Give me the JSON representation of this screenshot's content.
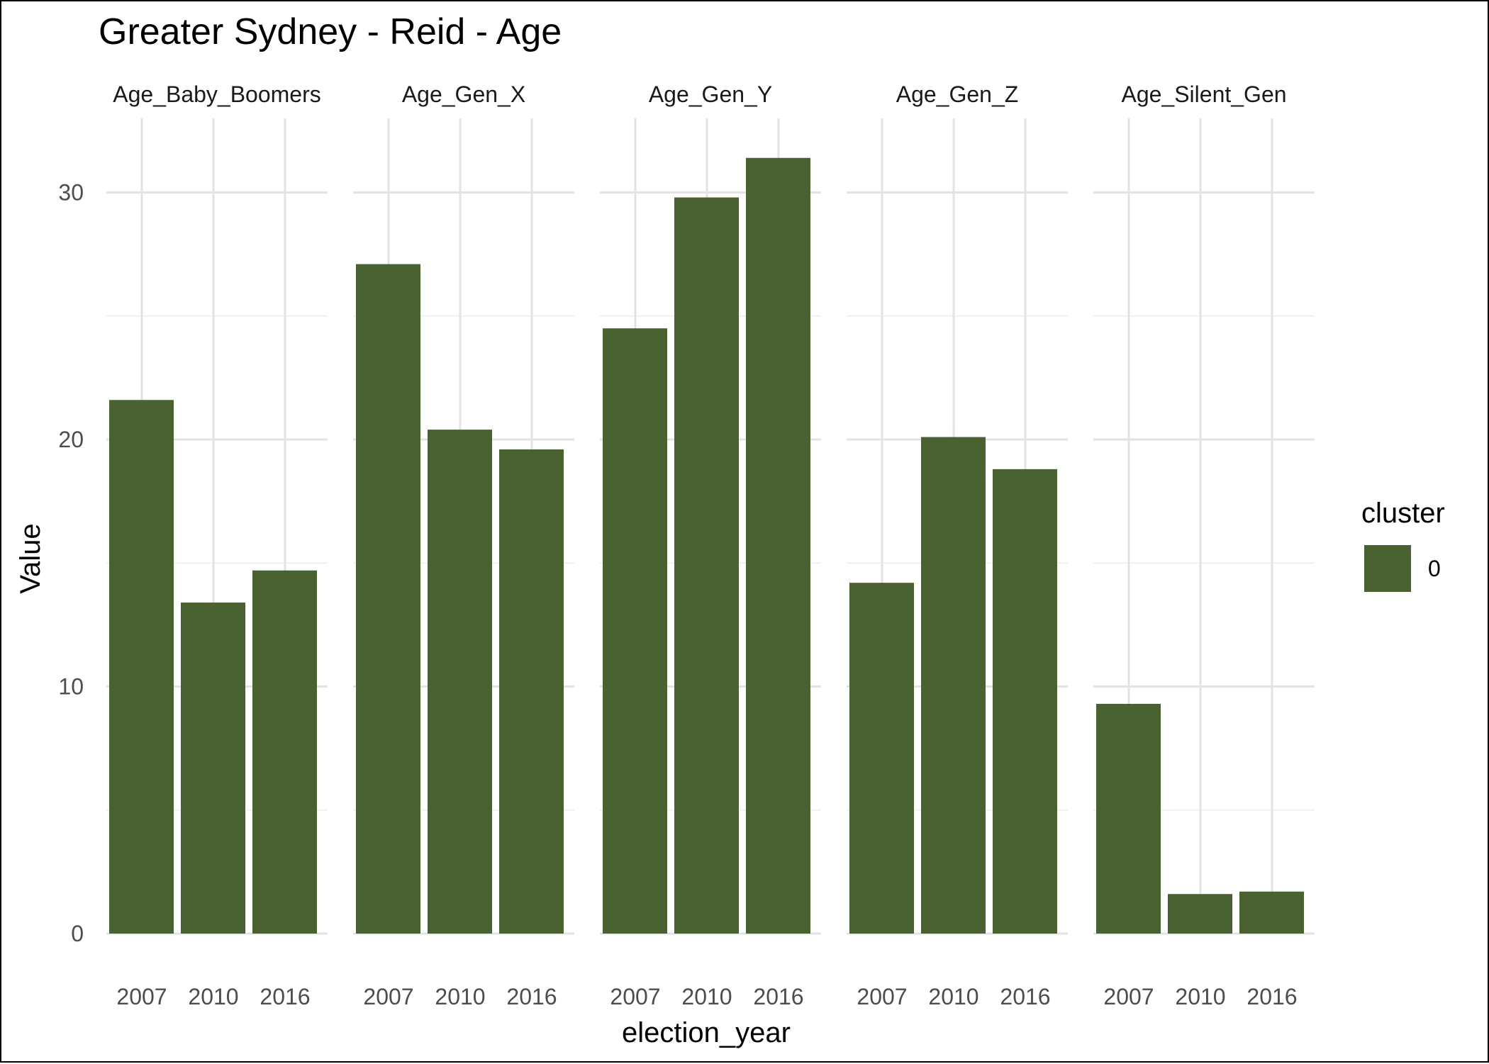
{
  "chart_data": {
    "type": "bar",
    "title": "Greater Sydney - Reid - Age",
    "xlabel": "election_year",
    "ylabel": "Value",
    "ylim": [
      0,
      33
    ],
    "yticks": [
      "0",
      "10",
      "20",
      "30"
    ],
    "categories": [
      "2007",
      "2010",
      "2016"
    ],
    "bar_color": "#4a6132",
    "grid": true,
    "legend": {
      "title": "cluster",
      "position": "right",
      "entries": [
        {
          "label": "0",
          "color": "#4a6132"
        }
      ]
    },
    "facets": [
      {
        "name": "Age_Baby_Boomers",
        "values": [
          21.6,
          13.4,
          14.7
        ]
      },
      {
        "name": "Age_Gen_X",
        "values": [
          27.1,
          20.4,
          19.6
        ]
      },
      {
        "name": "Age_Gen_Y",
        "values": [
          24.5,
          29.8,
          31.4
        ]
      },
      {
        "name": "Age_Gen_Z",
        "values": [
          14.2,
          20.1,
          18.8
        ]
      },
      {
        "name": "Age_Silent_Gen",
        "values": [
          9.3,
          1.6,
          1.7
        ]
      }
    ]
  }
}
